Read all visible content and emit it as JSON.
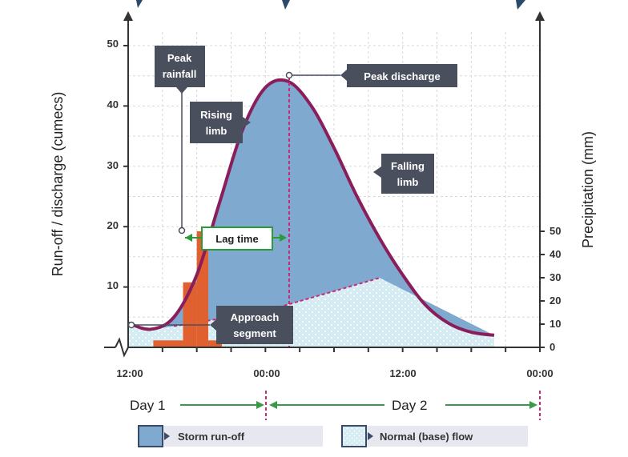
{
  "y_left": {
    "title": "Run-off / discharge (cumecs)",
    "ticks": [
      "10",
      "20",
      "30",
      "40",
      "50"
    ]
  },
  "y_right": {
    "title": "Precipitation (mm)",
    "ticks": [
      "0",
      "10",
      "20",
      "30",
      "40",
      "50"
    ]
  },
  "x_axis": {
    "ticks": [
      "12:00",
      "00:00",
      "12:00",
      "00:00"
    ]
  },
  "days": {
    "day1": "Day 1",
    "day2": "Day 2"
  },
  "labels": {
    "peak_rainfall": [
      "Peak",
      "rainfall"
    ],
    "rising_limb": [
      "Rising",
      "limb"
    ],
    "peak_discharge": "Peak discharge",
    "falling_limb": [
      "Falling",
      "limb"
    ],
    "lag_time": "Lag time",
    "approach_segment": [
      "Approach",
      "segment"
    ]
  },
  "legend": {
    "storm": "Storm run-off",
    "base": "Normal (base) flow"
  },
  "colors": {
    "hydrograph_line": "#8a1e5a",
    "storm_fill": "#7fa9cf",
    "base_fill": "#d6ecf3",
    "rain_bars": "#e06030",
    "callout_bg": "#4a4f5e",
    "lag_box": "#2a9a3a",
    "day_arrow": "#3a9a4a",
    "divider": "#c8287a"
  },
  "chart_data": {
    "type": "hydrograph",
    "discharge_curve": [
      [
        0,
        4
      ],
      [
        2,
        3
      ],
      [
        4,
        5
      ],
      [
        6,
        12
      ],
      [
        8,
        24
      ],
      [
        10,
        36
      ],
      [
        12,
        43
      ],
      [
        14,
        44
      ],
      [
        16,
        40
      ],
      [
        18,
        33
      ],
      [
        20,
        25
      ],
      [
        22,
        18
      ],
      [
        24,
        12
      ],
      [
        26,
        7
      ],
      [
        28,
        4
      ],
      [
        30,
        2.5
      ],
      [
        32,
        2
      ]
    ],
    "base_flow": [
      [
        0,
        4
      ],
      [
        2,
        3
      ],
      [
        4,
        3.5
      ],
      [
        12,
        6
      ],
      [
        22,
        11.5
      ],
      [
        32,
        2
      ]
    ],
    "rainfall_bars": [
      {
        "start": 2.2,
        "end": 4.8,
        "mm": 3
      },
      {
        "start": 4.8,
        "end": 6.0,
        "mm": 28
      },
      {
        "start": 6.0,
        "end": 7.0,
        "mm": 50
      },
      {
        "start": 7.0,
        "end": 8.2,
        "mm": 3
      }
    ],
    "peak_rainfall_hour": 6.5,
    "peak_discharge_hour": 14
  }
}
